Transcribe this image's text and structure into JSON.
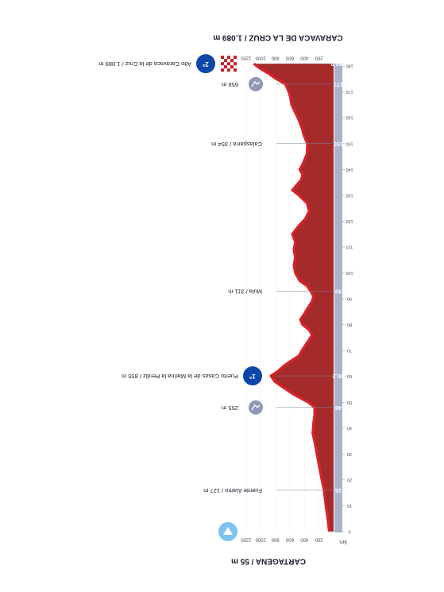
{
  "chart_data": {
    "type": "area",
    "orientation": "rotated",
    "title_start": "CARTAGENA / 55 m",
    "title_end": "CARAVACA DE LA CRUZ / 1.089 m",
    "unit_label": "km",
    "xlim": [
      0,
      180.9
    ],
    "ylim": [
      0,
      1200
    ],
    "x_ticks": [
      "0",
      "10",
      "20",
      "30",
      "40",
      "50",
      "60",
      "70",
      "80",
      "90",
      "100",
      "110",
      "120",
      "130",
      "140",
      "150",
      "160",
      "170",
      "180"
    ],
    "y_ticks": [
      "1200",
      "1000",
      "800",
      "600",
      "400",
      "200"
    ],
    "key_km_labels": [
      {
        "km": 16,
        "text": "16"
      },
      {
        "km": 48,
        "text": "48"
      },
      {
        "km": 60.2,
        "text": "60,2"
      },
      {
        "km": 93,
        "text": "93"
      },
      {
        "km": 150,
        "text": "150"
      },
      {
        "km": 173,
        "text": "173"
      },
      {
        "km": 180.9,
        "text": "180,9"
      }
    ],
    "points": [
      {
        "km": 16,
        "label": "Fuente Álamo / 127 m",
        "kind": "town"
      },
      {
        "km": 48,
        "label": "255 m",
        "kind": "sprint"
      },
      {
        "km": 60.2,
        "label": "Puerto Casas de la Marina la Perdiz / 855 m",
        "kind": "climb",
        "category": "1ª"
      },
      {
        "km": 93,
        "label": "Mula / 311 m",
        "kind": "town"
      },
      {
        "km": 150,
        "label": "Calasparra / 354 m",
        "kind": "town"
      },
      {
        "km": 173,
        "label": "656 m",
        "kind": "sprint"
      },
      {
        "km": 180.9,
        "label": "Alto Caravaca de la Cruz / 1.089 m",
        "kind": "finish-climb",
        "category": "2ª"
      }
    ],
    "elevation": [
      [
        0,
        55
      ],
      [
        5,
        75
      ],
      [
        10,
        100
      ],
      [
        16,
        127
      ],
      [
        22,
        170
      ],
      [
        28,
        210
      ],
      [
        34,
        250
      ],
      [
        38,
        280
      ],
      [
        42,
        270
      ],
      [
        45,
        255
      ],
      [
        48,
        255
      ],
      [
        50,
        340
      ],
      [
        53,
        540
      ],
      [
        56,
        700
      ],
      [
        58,
        800
      ],
      [
        60.2,
        855
      ],
      [
        62,
        760
      ],
      [
        64,
        680
      ],
      [
        66,
        580
      ],
      [
        68,
        470
      ],
      [
        70,
        430
      ],
      [
        73,
        360
      ],
      [
        76,
        290
      ],
      [
        78,
        330
      ],
      [
        80,
        420
      ],
      [
        82,
        450
      ],
      [
        84,
        400
      ],
      [
        86,
        360
      ],
      [
        89,
        290
      ],
      [
        91,
        270
      ],
      [
        93,
        311
      ],
      [
        95,
        360
      ],
      [
        97,
        460
      ],
      [
        100,
        520
      ],
      [
        103,
        540
      ],
      [
        106,
        520
      ],
      [
        109,
        540
      ],
      [
        112,
        520
      ],
      [
        115,
        560
      ],
      [
        118,
        480
      ],
      [
        121,
        380
      ],
      [
        124,
        330
      ],
      [
        127,
        360
      ],
      [
        130,
        470
      ],
      [
        132,
        560
      ],
      [
        134,
        500
      ],
      [
        136,
        440
      ],
      [
        138,
        420
      ],
      [
        140,
        460
      ],
      [
        142,
        420
      ],
      [
        146,
        360
      ],
      [
        150,
        354
      ],
      [
        153,
        400
      ],
      [
        156,
        430
      ],
      [
        159,
        470
      ],
      [
        162,
        520
      ],
      [
        165,
        570
      ],
      [
        168,
        590
      ],
      [
        170,
        610
      ],
      [
        173,
        656
      ],
      [
        175,
        780
      ],
      [
        177,
        880
      ],
      [
        179,
        1000
      ],
      [
        180.9,
        1089
      ]
    ],
    "colors": {
      "fill": "#a52a2a",
      "edge": "#d8232a",
      "axis_band": "#a9b3c9",
      "marker": "#0a47a8",
      "sprint_marker": "#8e99b5",
      "start_marker": "#7cc4f0"
    }
  }
}
